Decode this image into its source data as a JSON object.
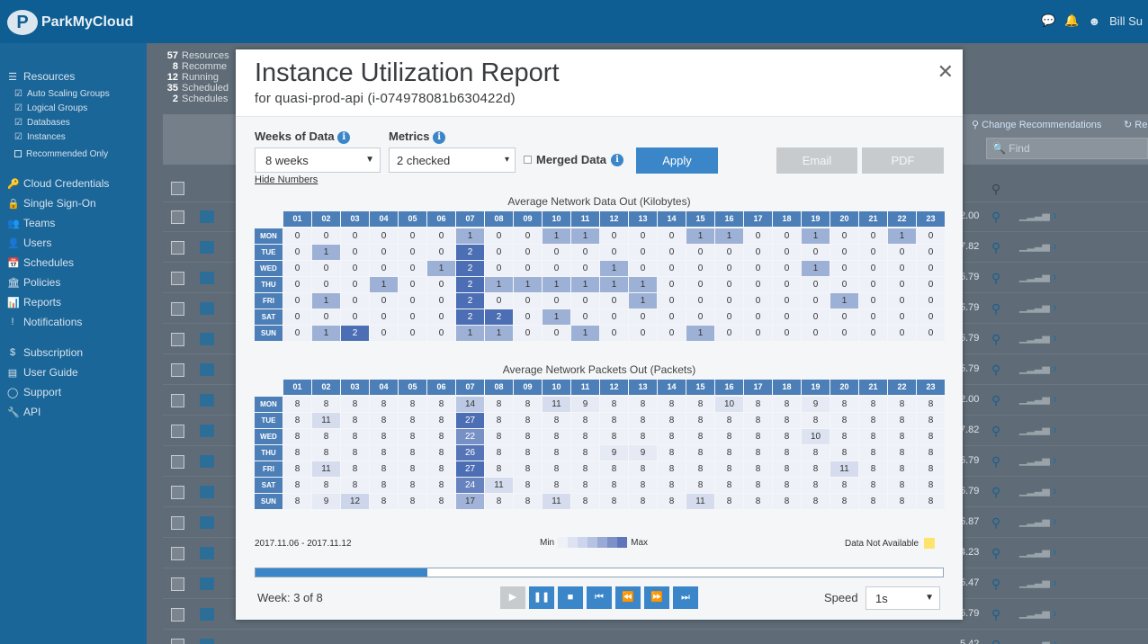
{
  "app": {
    "logo_text": "ParkMyCloud",
    "user": "Bill Su"
  },
  "sidebar": {
    "resources": "Resources",
    "sub_items": [
      "Auto Scaling Groups",
      "Logical Groups",
      "Databases",
      "Instances"
    ],
    "recommended": "Recommended Only",
    "items": [
      "Cloud Credentials",
      "Single Sign-On",
      "Teams",
      "Users",
      "Schedules",
      "Policies",
      "Reports",
      "Notifications"
    ],
    "items2": [
      "Subscription",
      "User Guide",
      "Support",
      "API"
    ]
  },
  "stats": [
    {
      "n": "57",
      "label": "Resources"
    },
    {
      "n": "8",
      "label": "Recomme"
    },
    {
      "n": "12",
      "label": "Running"
    },
    {
      "n": "35",
      "label": "Scheduled"
    },
    {
      "n": "2",
      "label": "Schedules"
    }
  ],
  "toolbar": {
    "change_rec": "Change Recommendations",
    "re": "Re",
    "find_placeholder": "Find"
  },
  "rows": [
    {
      "val": "2.00"
    },
    {
      "val": "7.82"
    },
    {
      "val": "5.79"
    },
    {
      "val": "5.79"
    },
    {
      "val": "5.79"
    },
    {
      "val": "5.79"
    },
    {
      "val": "2.00"
    },
    {
      "val": "7.82"
    },
    {
      "val": "5.79"
    },
    {
      "val": "5.79"
    },
    {
      "val": "5.87"
    },
    {
      "val": "4.23"
    },
    {
      "val": "5.47"
    },
    {
      "val": "5.79"
    },
    {
      "val": "5.42"
    }
  ],
  "modal": {
    "title": "Instance Utilization Report",
    "subtitle": "for quasi-prod-api (i-074978081b630422d)",
    "weeks_label": "Weeks of Data",
    "weeks_value": "8 weeks",
    "metrics_label": "Metrics",
    "metrics_value": "2 checked",
    "merged_label": "Merged Data",
    "apply": "Apply",
    "email": "Email",
    "pdf": "PDF",
    "hide_numbers": "Hide Numbers",
    "date_range": "2017.11.06 - 2017.11.12",
    "legend_min": "Min",
    "legend_max": "Max",
    "not_available": "Data Not Available",
    "week_text": "Week: 3 of 8",
    "week_progress": 0.25,
    "speed_label": "Speed",
    "speed_value": "1s"
  },
  "chart_data": [
    {
      "type": "heatmap",
      "title": "Average Network Data Out (Kilobytes)",
      "x": [
        "01",
        "02",
        "03",
        "04",
        "05",
        "06",
        "07",
        "08",
        "09",
        "10",
        "11",
        "12",
        "13",
        "14",
        "15",
        "16",
        "17",
        "18",
        "19",
        "20",
        "21",
        "22",
        "23"
      ],
      "y": [
        "MON",
        "TUE",
        "WED",
        "THU",
        "FRI",
        "SAT",
        "SUN"
      ],
      "values": [
        [
          0,
          0,
          0,
          0,
          0,
          0,
          1,
          0,
          0,
          1,
          1,
          0,
          0,
          0,
          1,
          1,
          0,
          0,
          1,
          0,
          0,
          1,
          0
        ],
        [
          0,
          1,
          0,
          0,
          0,
          0,
          2,
          0,
          0,
          0,
          0,
          0,
          0,
          0,
          0,
          0,
          0,
          0,
          0,
          0,
          0,
          0,
          0
        ],
        [
          0,
          0,
          0,
          0,
          0,
          1,
          2,
          0,
          0,
          0,
          0,
          1,
          0,
          0,
          0,
          0,
          0,
          0,
          1,
          0,
          0,
          0,
          0
        ],
        [
          0,
          0,
          0,
          1,
          0,
          0,
          2,
          1,
          1,
          1,
          1,
          1,
          1,
          0,
          0,
          0,
          0,
          0,
          0,
          0,
          0,
          0,
          0
        ],
        [
          0,
          1,
          0,
          0,
          0,
          0,
          2,
          0,
          0,
          0,
          0,
          0,
          1,
          0,
          0,
          0,
          0,
          0,
          0,
          1,
          0,
          0,
          0
        ],
        [
          0,
          0,
          0,
          0,
          0,
          0,
          2,
          2,
          0,
          1,
          0,
          0,
          0,
          0,
          0,
          0,
          0,
          0,
          0,
          0,
          0,
          0,
          0
        ],
        [
          0,
          1,
          2,
          0,
          0,
          0,
          1,
          1,
          0,
          0,
          1,
          0,
          0,
          0,
          1,
          0,
          0,
          0,
          0,
          0,
          0,
          0,
          0
        ]
      ]
    },
    {
      "type": "heatmap",
      "title": "Average Network Packets Out (Packets)",
      "x": [
        "01",
        "02",
        "03",
        "04",
        "05",
        "06",
        "07",
        "08",
        "09",
        "10",
        "11",
        "12",
        "13",
        "14",
        "15",
        "16",
        "17",
        "18",
        "19",
        "20",
        "21",
        "22",
        "23"
      ],
      "y": [
        "MON",
        "TUE",
        "WED",
        "THU",
        "FRI",
        "SAT",
        "SUN"
      ],
      "values": [
        [
          8,
          8,
          8,
          8,
          8,
          8,
          14,
          8,
          8,
          11,
          9,
          8,
          8,
          8,
          8,
          10,
          8,
          8,
          9,
          8,
          8,
          8,
          8
        ],
        [
          8,
          11,
          8,
          8,
          8,
          8,
          27,
          8,
          8,
          8,
          8,
          8,
          8,
          8,
          8,
          8,
          8,
          8,
          8,
          8,
          8,
          8,
          8
        ],
        [
          8,
          8,
          8,
          8,
          8,
          8,
          22,
          8,
          8,
          8,
          8,
          8,
          8,
          8,
          8,
          8,
          8,
          8,
          10,
          8,
          8,
          8,
          8
        ],
        [
          8,
          8,
          8,
          8,
          8,
          8,
          26,
          8,
          8,
          8,
          8,
          9,
          9,
          8,
          8,
          8,
          8,
          8,
          8,
          8,
          8,
          8,
          8
        ],
        [
          8,
          11,
          8,
          8,
          8,
          8,
          27,
          8,
          8,
          8,
          8,
          8,
          8,
          8,
          8,
          8,
          8,
          8,
          8,
          11,
          8,
          8,
          8
        ],
        [
          8,
          8,
          8,
          8,
          8,
          8,
          24,
          11,
          8,
          8,
          8,
          8,
          8,
          8,
          8,
          8,
          8,
          8,
          8,
          8,
          8,
          8,
          8
        ],
        [
          8,
          9,
          12,
          8,
          8,
          8,
          17,
          8,
          8,
          11,
          8,
          8,
          8,
          8,
          11,
          8,
          8,
          8,
          8,
          8,
          8,
          8,
          8
        ]
      ]
    }
  ]
}
